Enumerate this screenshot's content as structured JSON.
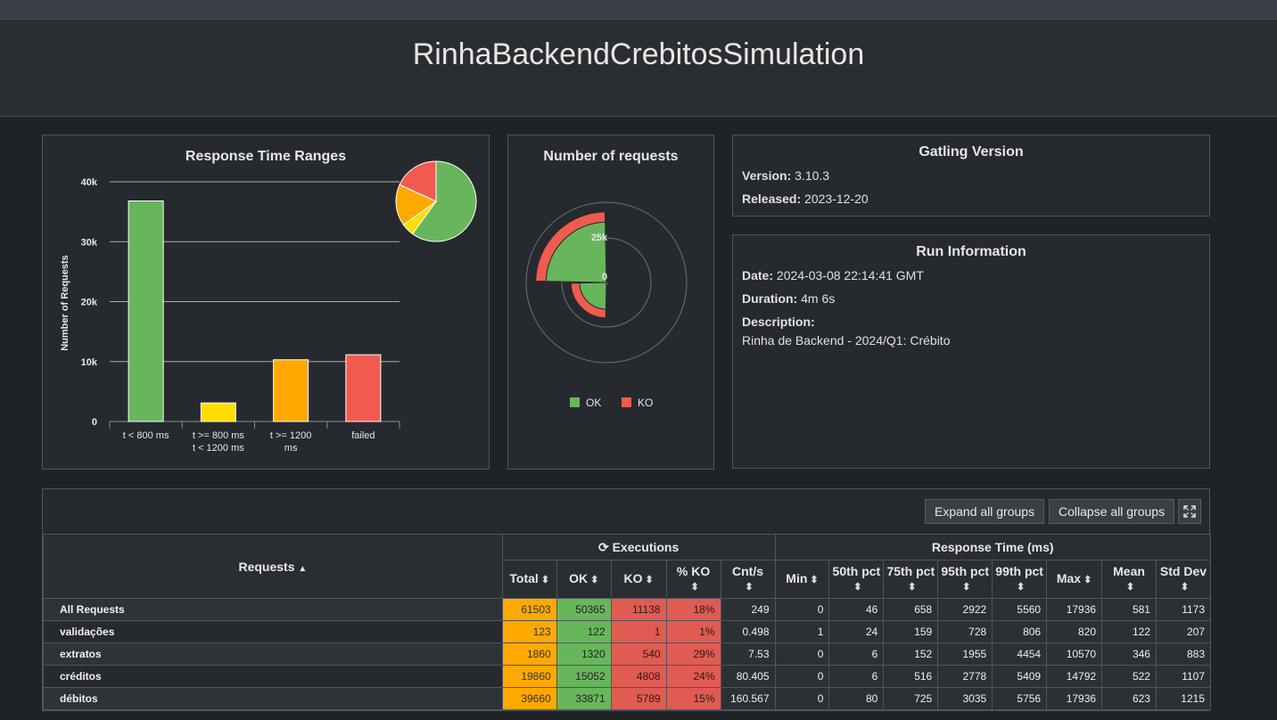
{
  "title": "RinhaBackendCrebitosSimulation",
  "response_time_ranges": {
    "title": "Response Time Ranges",
    "ylabel": "Number of Requests",
    "ytick_labels": [
      "40k",
      "30k",
      "20k",
      "10k",
      "0"
    ],
    "category_labels": [
      [
        "t < 800 ms"
      ],
      [
        "t >= 800 ms",
        "t < 1200 ms"
      ],
      [
        "t >= 1200",
        "ms"
      ],
      [
        "failed"
      ]
    ]
  },
  "chart_data": [
    {
      "type": "bar",
      "title": "Response Time Ranges",
      "xlabel": "",
      "ylabel": "Number of Requests",
      "categories": [
        "t < 800 ms",
        "t >= 800 ms t < 1200 ms",
        "t >= 1200 ms",
        "failed"
      ],
      "values": [
        36800,
        3100,
        10300,
        11138
      ],
      "colors": [
        "#68b65c",
        "#ffdd00",
        "#ffa900",
        "#f15b4f"
      ],
      "ylim": [
        0,
        40000
      ],
      "yticks": [
        0,
        10000,
        20000,
        30000,
        40000
      ]
    },
    {
      "type": "pie",
      "categories": [
        "t < 800 ms",
        "t >= 800 ms t < 1200 ms",
        "t >= 1200 ms",
        "failed"
      ],
      "values": [
        36800,
        3100,
        10300,
        11138
      ],
      "colors": [
        "#68b65c",
        "#ffdd00",
        "#ffa900",
        "#f15b4f"
      ]
    },
    {
      "type": "polar",
      "title": "Number of requests",
      "categories": [
        "validações",
        "extratos",
        "créditos",
        "débitos"
      ],
      "series": [
        {
          "name": "OK",
          "values": [
            122,
            1320,
            15052,
            33871
          ],
          "color": "#68b65c"
        },
        {
          "name": "KO",
          "values": [
            1,
            540,
            4808,
            5789
          ],
          "color": "#f15b4f"
        }
      ],
      "radial_ticks": [
        "0",
        "25k"
      ],
      "rmax": 50000
    }
  ],
  "number_of_requests": {
    "title": "Number of requests",
    "tick_zero": "0",
    "tick_25k": "25k",
    "legend": [
      {
        "label": "OK",
        "color": "#68b65c"
      },
      {
        "label": "KO",
        "color": "#f15b4f"
      }
    ]
  },
  "gatling": {
    "title": "Gatling Version",
    "version_label": "Version:",
    "version": "3.10.3",
    "released_label": "Released:",
    "released": "2023-12-20"
  },
  "run_info": {
    "title": "Run Information",
    "date_label": "Date:",
    "date": "2024-03-08 22:14:41 GMT",
    "duration_label": "Duration:",
    "duration": "4m 6s",
    "description_label": "Description:",
    "description": "Rinha de Backend - 2024/Q1: Crébito"
  },
  "table": {
    "expand_label": "Expand all groups",
    "collapse_label": "Collapse all groups",
    "requests_header": "Requests",
    "executions_header": "Executions",
    "response_time_header": "Response Time (ms)",
    "columns": [
      "Total",
      "OK",
      "KO",
      "% KO",
      "Cnt/s",
      "Min",
      "50th pct",
      "75th pct",
      "95th pct",
      "99th pct",
      "Max",
      "Mean",
      "Std Dev"
    ],
    "rows": [
      {
        "name": "All Requests",
        "values": [
          "61503",
          "50365",
          "11138",
          "18%",
          "249",
          "0",
          "46",
          "658",
          "2922",
          "5560",
          "17936",
          "581",
          "1173"
        ]
      },
      {
        "name": "validações",
        "values": [
          "123",
          "122",
          "1",
          "1%",
          "0.498",
          "1",
          "24",
          "159",
          "728",
          "806",
          "820",
          "122",
          "207"
        ]
      },
      {
        "name": "extratos",
        "values": [
          "1860",
          "1320",
          "540",
          "29%",
          "7.53",
          "0",
          "6",
          "152",
          "1955",
          "4454",
          "10570",
          "346",
          "883"
        ]
      },
      {
        "name": "créditos",
        "values": [
          "19860",
          "15052",
          "4808",
          "24%",
          "80.405",
          "0",
          "6",
          "516",
          "2778",
          "5409",
          "14792",
          "522",
          "1107"
        ]
      },
      {
        "name": "débitos",
        "values": [
          "39660",
          "33871",
          "5789",
          "15%",
          "160.567",
          "0",
          "80",
          "725",
          "3035",
          "5756",
          "17936",
          "623",
          "1215"
        ]
      }
    ]
  }
}
